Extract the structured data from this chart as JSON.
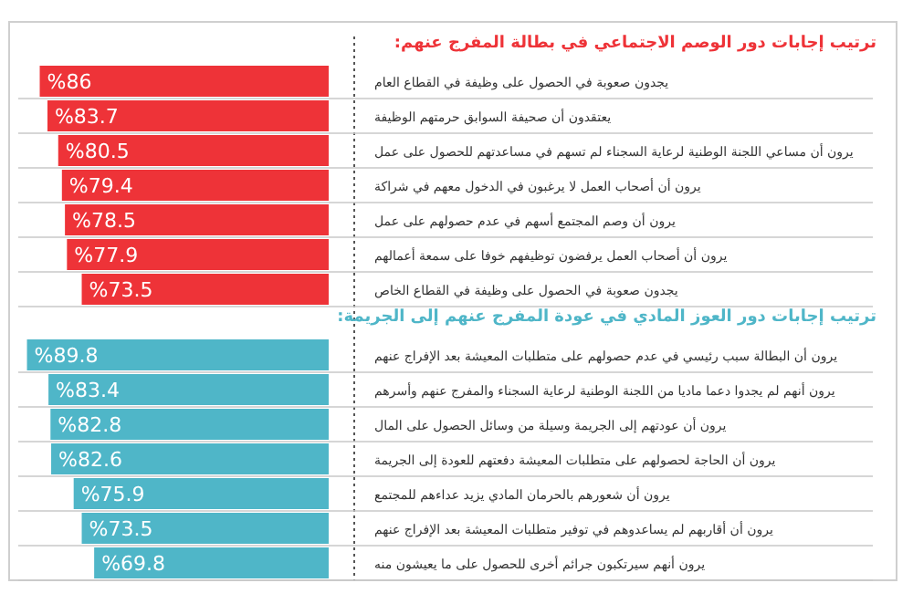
{
  "chart_data": [
    {
      "type": "bar",
      "orientation": "horizontal",
      "title": "ترتيب إجابات دور الوصم الاجتماعي في بطالة المفرج عنهم:",
      "color": "#ee3338",
      "categories": [
        "يجدون صعوبة في الحصول على وظيفة في القطاع العام",
        "يعتقدون أن صحيفة السوابق حرمتهم الوظيفة",
        "يرون أن مساعي اللجنة الوطنية لرعاية السجناء لم تسهم في مساعدتهم للحصول على عمل",
        "يرون أن أصحاب العمل لا يرغبون في الدخول معهم في شراكة",
        "يرون أن وصم المجتمع أسهم في عدم حصولهم على عمل",
        "يرون أن أصحاب العمل يرفضون توظيفهم خوفا على سمعة أعمالهم",
        "يجدون صعوبة في الحصول على وظيفة في القطاع الخاص"
      ],
      "values": [
        86,
        83.7,
        80.5,
        79.4,
        78.5,
        77.9,
        73.5
      ],
      "value_labels": [
        "%86",
        "%83.7",
        "%80.5",
        "%79.4",
        "%78.5",
        "%77.9",
        "%73.5"
      ]
    },
    {
      "type": "bar",
      "orientation": "horizontal",
      "title": "ترتيب إجابات دور العوز المادي في عودة المفرج عنهم إلى الجريمة:",
      "color": "#4fb6c8",
      "categories": [
        "يرون أن البطالة سبب رئيسي في عدم حصولهم على متطلبات المعيشة بعد الإفراج عنهم",
        "يرون أنهم لم يجدوا دعما ماديا من اللجنة الوطنية لرعاية السجناء والمفرج عنهم وأسرهم",
        "يرون أن عودتهم إلى الجريمة وسيلة من وسائل الحصول على المال",
        "يرون أن الحاجة لحصولهم على متطلبات المعيشة دفعتهم للعودة إلى الجريمة",
        "يرون أن شعورهم بالحرمان المادي يزيد عداءهم للمجتمع",
        "يرون أن أقاربهم لم يساعدوهم في توفير متطلبات المعيشة بعد الإفراج عنهم",
        "يرون أنهم سيرتكبون جرائم أخرى للحصول على ما يعيشون منه"
      ],
      "values": [
        89.8,
        83.4,
        82.8,
        82.6,
        75.9,
        73.5,
        69.8
      ],
      "value_labels": [
        "%89.8",
        "%83.4",
        "%82.8",
        "%82.6",
        "%75.9",
        "%73.5",
        "%69.8"
      ]
    }
  ]
}
